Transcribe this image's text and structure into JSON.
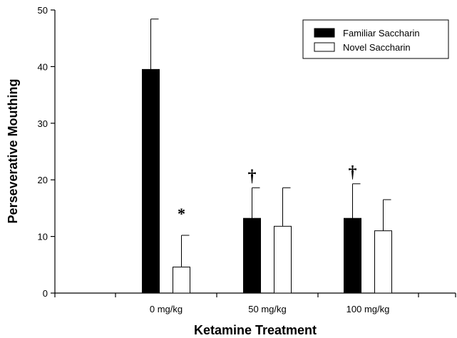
{
  "chart_data": {
    "type": "bar",
    "xlabel": "Ketamine Treatment",
    "ylabel": "Perseverative Mouthing",
    "ylim": [
      0,
      50
    ],
    "yticks": [
      "0",
      "10",
      "20",
      "30",
      "40",
      "50"
    ],
    "categories": [
      "0 mg/kg",
      "50 mg/kg",
      "100 mg/kg"
    ],
    "series": [
      {
        "name": "Familiar Saccharin",
        "color": "#000000",
        "values": [
          39.5,
          13.2,
          13.2
        ],
        "errors": [
          8.9,
          5.4,
          6.1
        ]
      },
      {
        "name": "Novel Saccharin",
        "color": "#ffffff",
        "values": [
          4.6,
          11.8,
          11.0
        ],
        "errors": [
          5.6,
          6.8,
          5.5
        ]
      }
    ],
    "annotations": [
      {
        "text": "*",
        "category": 0,
        "series": 1
      },
      {
        "text": "†",
        "category": 1,
        "series": 0
      },
      {
        "text": "†",
        "category": 2,
        "series": 0
      }
    ],
    "legend_position": "top-right",
    "grid": false
  }
}
